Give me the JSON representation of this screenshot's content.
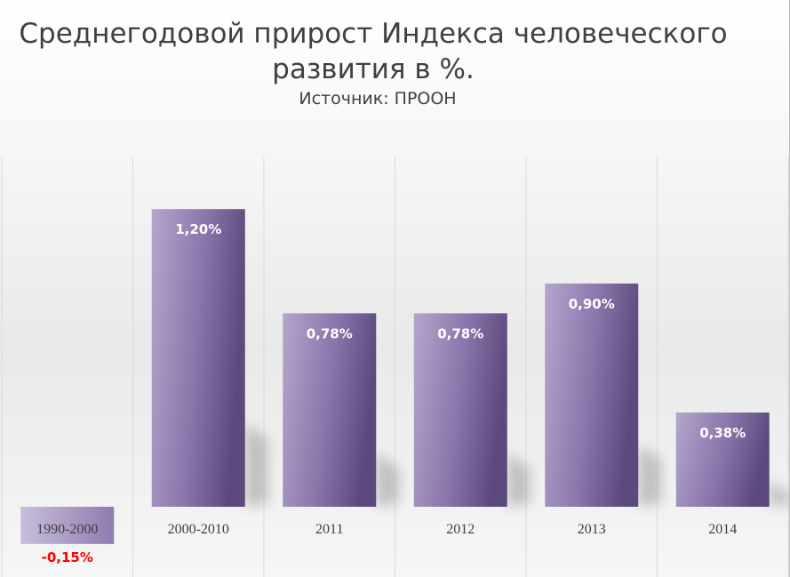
{
  "chart_data": {
    "type": "bar",
    "title": "Среднегодовой прирост Индекса человеческого развития в %.",
    "subtitle": "Источник: ПРООН",
    "categories": [
      "1990-2000",
      "2000-2010",
      "2011",
      "2012",
      "2013",
      "2014"
    ],
    "values": [
      -0.15,
      1.2,
      0.78,
      0.78,
      0.9,
      0.38
    ],
    "data_labels": [
      "-0,15%",
      "1,20%",
      "0,78%",
      "0,78%",
      "0,90%",
      "0,38%"
    ],
    "ylim": [
      -0.15,
      1.6
    ],
    "grid": true,
    "legend": "none",
    "colors": {
      "bar_light": "#b4a6cc",
      "bar_mid": "#8a76ab",
      "bar_dark": "#5c4a7e",
      "label": "#ffffff",
      "negative_label": "#ff0000",
      "text": "#404040"
    }
  }
}
